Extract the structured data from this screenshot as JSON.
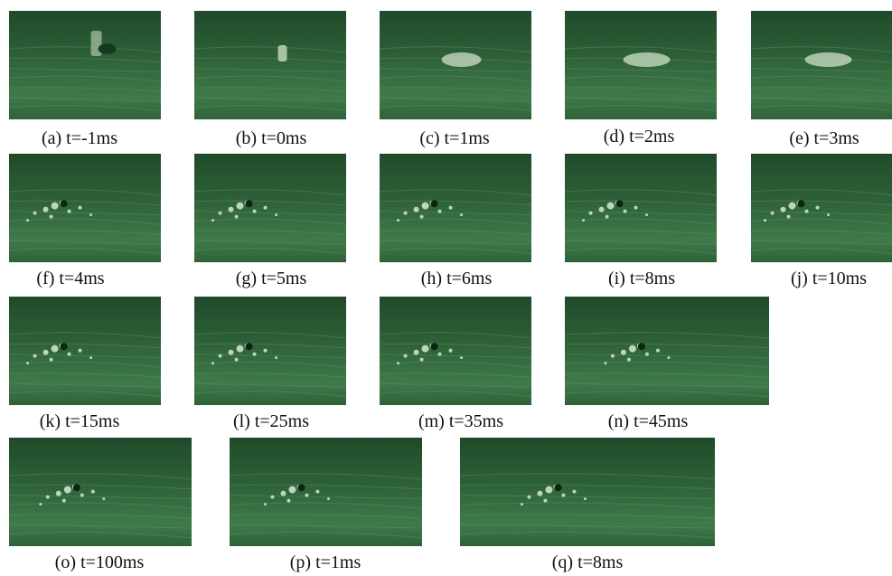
{
  "frames": [
    {
      "caption": "(a) t=-1ms",
      "stage": "drop"
    },
    {
      "caption": "(b) t=0ms",
      "stage": "impact"
    },
    {
      "caption": "(c) t=1ms",
      "stage": "spread"
    },
    {
      "caption": "(d) t=2ms",
      "stage": "spread-max"
    },
    {
      "caption": "(e) t=3ms",
      "stage": "recede"
    },
    {
      "caption": "(f) t=4ms",
      "stage": "fragment"
    },
    {
      "caption": "(g) t=5ms",
      "stage": "droplets"
    },
    {
      "caption": "(h) t=6ms",
      "stage": "droplets"
    },
    {
      "caption": "(i) t=8ms",
      "stage": "droplets"
    },
    {
      "caption": "(j) t=10ms",
      "stage": "droplets"
    },
    {
      "caption": "(k) t=15ms",
      "stage": "droplets"
    },
    {
      "caption": "(l) t=25ms",
      "stage": "droplets"
    },
    {
      "caption": "(m) t=35ms",
      "stage": "droplets"
    },
    {
      "caption": "(n) t=45ms",
      "stage": "droplets"
    },
    {
      "caption": "(o) t=100ms",
      "stage": "droplets"
    },
    {
      "caption": "(p) t=1ms",
      "stage": "droplets"
    },
    {
      "caption": "(q) t=8ms",
      "stage": "droplets"
    }
  ],
  "colors": {
    "leaf_dark": "#1f4a2a",
    "leaf_mid": "#2f6239",
    "leaf_light": "#3f7a4a",
    "vein": "#5d9468",
    "droplet": "#d8e8d0"
  }
}
